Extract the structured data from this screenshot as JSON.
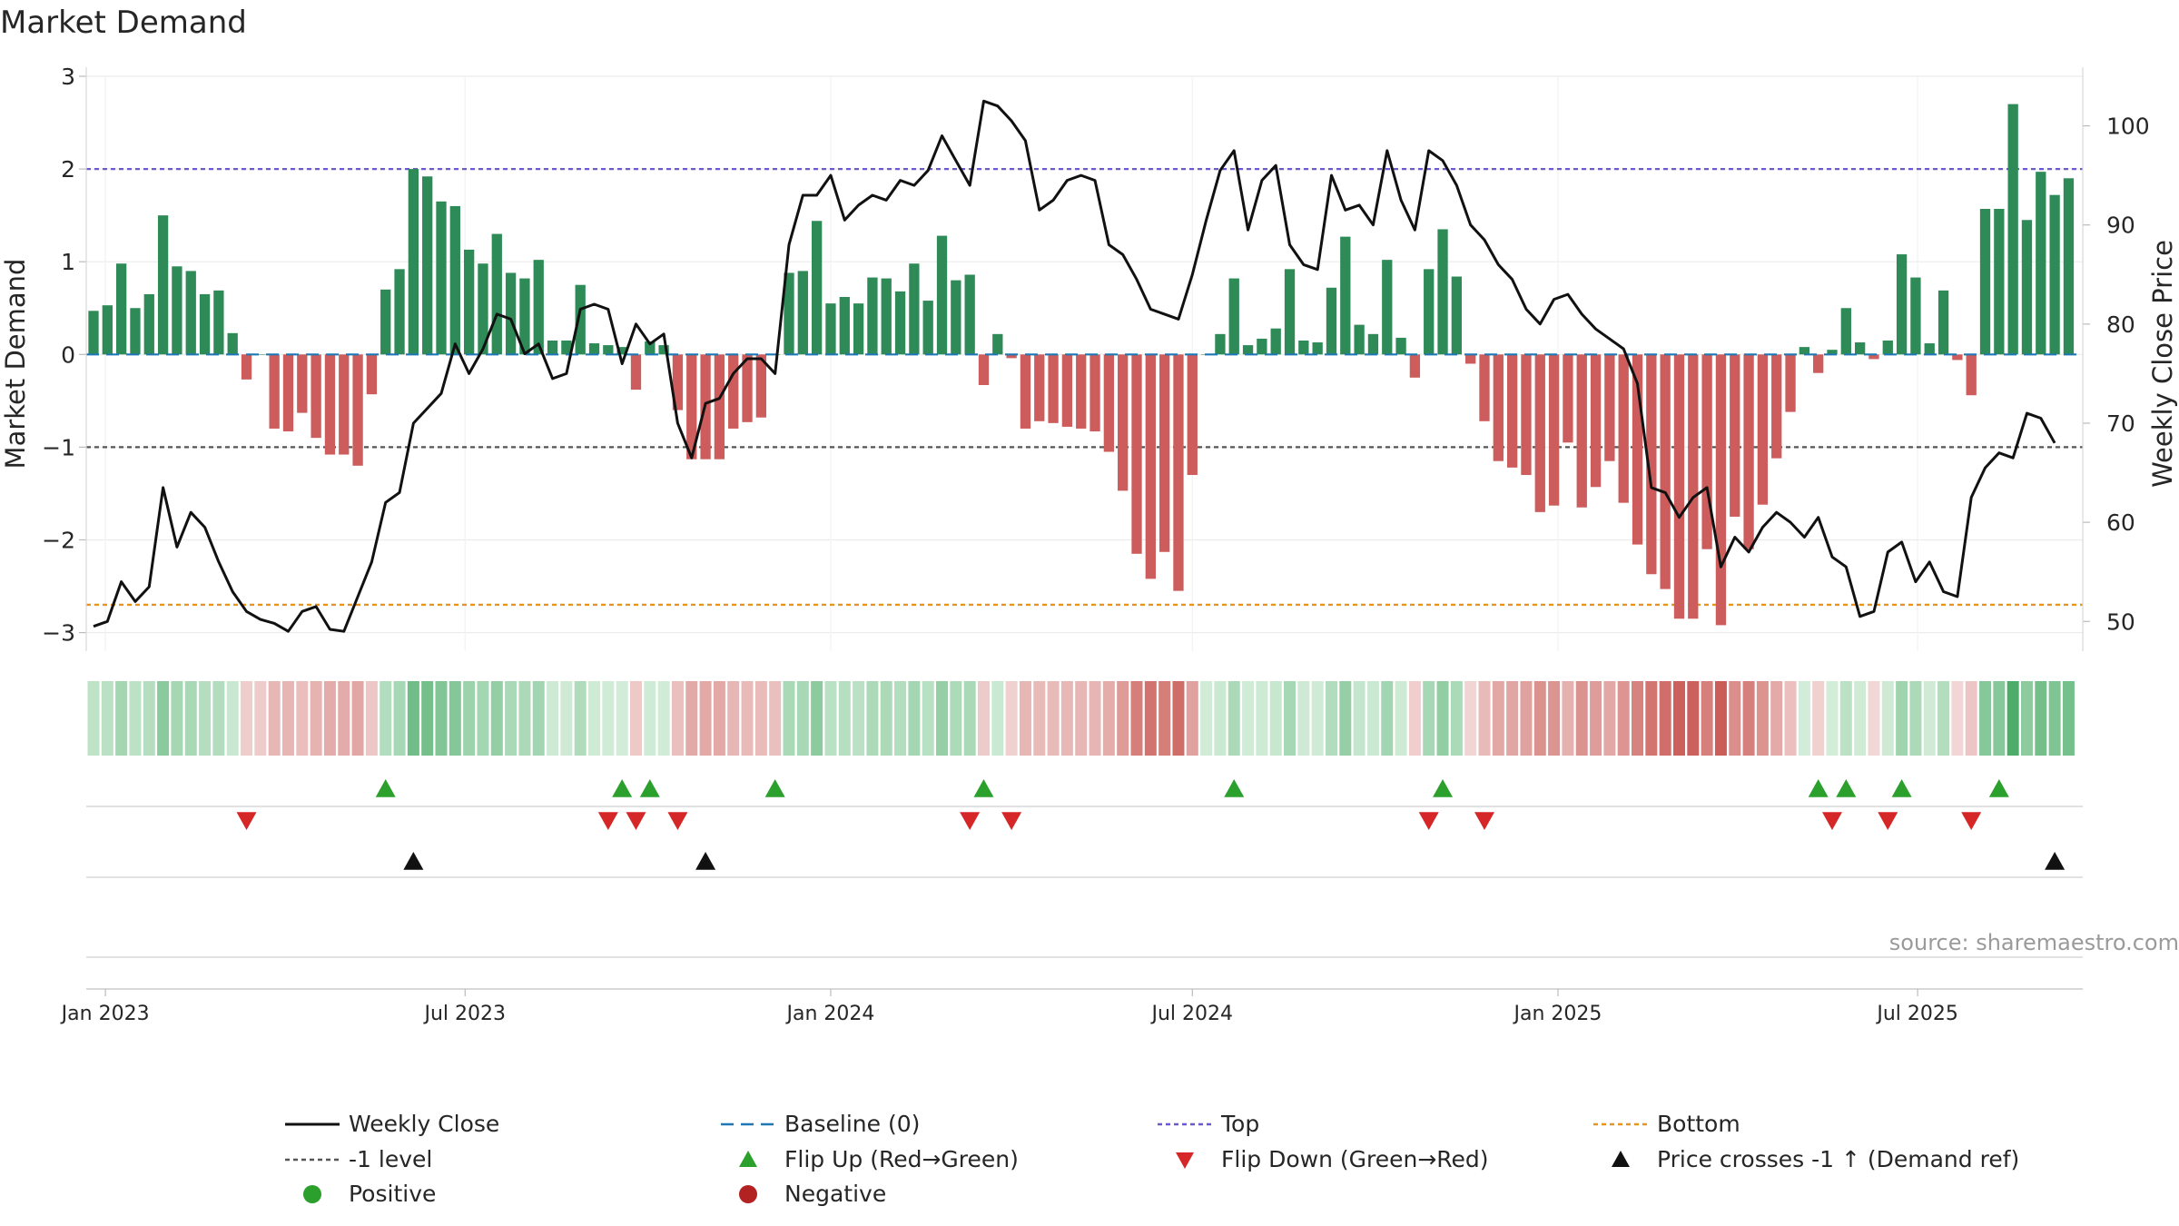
{
  "chart_data": {
    "type": "bar",
    "title": "Market Demand",
    "ylabel": "Market Demand",
    "ylabel_right": "Weekly Close Price",
    "ylim": [
      -3.2,
      3
    ],
    "ylim_right": [
      47,
      105
    ],
    "yticks": [
      3,
      2,
      1,
      0,
      -1,
      -2,
      -3
    ],
    "yticks_labels": [
      "3",
      "2",
      "1",
      "0",
      "−1",
      "−2",
      "−3"
    ],
    "yticks_right": [
      100,
      90,
      80,
      70,
      60,
      50
    ],
    "yticks_right_labels": [
      "100",
      "90",
      "80",
      "70",
      "60",
      "50"
    ],
    "x_start": "2022-12-26",
    "x_step_days": 7,
    "xticks": [
      {
        "date": "2023-01-01",
        "label": "Jan 2023"
      },
      {
        "date": "2023-07-01",
        "label": "Jul 2023"
      },
      {
        "date": "2024-01-01",
        "label": "Jan 2024"
      },
      {
        "date": "2024-07-01",
        "label": "Jul 2024"
      },
      {
        "date": "2025-01-01",
        "label": "Jan 2025"
      },
      {
        "date": "2025-07-01",
        "label": "Jul 2025"
      }
    ],
    "reference_lines": {
      "top": 2,
      "bottom": -2.7,
      "minus_one": -1,
      "baseline": 0
    },
    "colors": {
      "positive": "#2e8b57",
      "negative": "#cd5c5c",
      "line": "#111111",
      "top": "#6a5acd",
      "bottom": "#e69520",
      "minus_one": "#555555",
      "baseline": "#1f77b4",
      "flip_up": "#2ca02c",
      "flip_down": "#d62728",
      "cross": "#111111",
      "legend_positive": "#2ca02c",
      "legend_negative": "#b22222"
    },
    "demand": [
      0.47,
      0.53,
      0.98,
      0.5,
      0.65,
      1.5,
      0.95,
      0.9,
      0.65,
      0.69,
      0.23,
      -0.27,
      0,
      -0.8,
      -0.83,
      -0.63,
      -0.9,
      -1.08,
      -1.08,
      -1.2,
      -0.43,
      0.7,
      0.92,
      2.0,
      1.92,
      1.65,
      1.6,
      1.13,
      0.98,
      1.3,
      0.88,
      0.82,
      1.02,
      0.15,
      0.15,
      0.75,
      0.12,
      0.1,
      0.08,
      -0.38,
      0.14,
      0.1,
      -0.6,
      -1.13,
      -1.13,
      -1.13,
      -0.8,
      -0.73,
      -0.68,
      0,
      0.88,
      0.9,
      1.44,
      0.55,
      0.62,
      0.55,
      0.83,
      0.82,
      0.68,
      0.98,
      0.58,
      1.28,
      0.8,
      0.86,
      -0.33,
      0.22,
      -0.04,
      -0.8,
      -0.72,
      -0.74,
      -0.78,
      -0.8,
      -0.83,
      -1.05,
      -1.47,
      -2.15,
      -2.42,
      -2.13,
      -2.55,
      -1.3,
      0,
      0.22,
      0.82,
      0.1,
      0.17,
      0.28,
      0.92,
      0.15,
      0.13,
      0.72,
      1.27,
      0.32,
      0.22,
      1.02,
      0.18,
      -0.25,
      0.92,
      1.35,
      0.84,
      -0.1,
      -0.72,
      -1.15,
      -1.22,
      -1.3,
      -1.7,
      -1.63,
      -0.95,
      -1.65,
      -1.43,
      -1.15,
      -1.6,
      -2.05,
      -2.37,
      -2.53,
      -2.85,
      -2.85,
      -2.1,
      -2.92,
      -1.75,
      -2.1,
      -1.62,
      -1.12,
      -0.62,
      0.08,
      -0.2,
      0.05,
      0.5,
      0.13,
      -0.05,
      0.15,
      1.08,
      0.83,
      0.12,
      0.69,
      -0.06,
      -0.44,
      1.57,
      1.57,
      2.7,
      1.45,
      1.97,
      1.72,
      1.9
    ],
    "price": [
      49.5,
      50.0,
      54.0,
      52.0,
      53.5,
      63.5,
      57.5,
      61.0,
      59.5,
      56.0,
      53.0,
      51.0,
      50.2,
      49.8,
      49.0,
      51.0,
      51.5,
      49.2,
      49.0,
      52.5,
      56.0,
      62.0,
      63.0,
      70.0,
      71.5,
      73.0,
      78.0,
      75.0,
      77.5,
      81.0,
      80.5,
      77.0,
      78.0,
      74.5,
      75.0,
      81.5,
      82.0,
      81.5,
      76.0,
      80.0,
      78.0,
      79.0,
      70.0,
      66.5,
      72.0,
      72.5,
      75.0,
      76.5,
      76.5,
      75.0,
      88.0,
      93.0,
      93.0,
      95.0,
      90.5,
      92.0,
      93.0,
      92.5,
      94.5,
      94.0,
      95.5,
      99.0,
      96.5,
      94.0,
      102.5,
      102.0,
      100.5,
      98.5,
      91.5,
      92.5,
      94.5,
      95.0,
      94.5,
      88.0,
      87.0,
      84.5,
      81.5,
      81.0,
      80.5,
      85.0,
      90.5,
      95.5,
      97.5,
      89.5,
      94.5,
      96.0,
      88.0,
      86.0,
      85.5,
      95.0,
      91.5,
      92.0,
      90.0,
      97.5,
      92.5,
      89.5,
      97.5,
      96.5,
      94.0,
      90.0,
      88.5,
      86.0,
      84.5,
      81.5,
      80.0,
      82.5,
      83.0,
      81.0,
      79.5,
      78.5,
      77.5,
      74.0,
      63.5,
      63.0,
      60.5,
      62.5,
      63.5,
      55.5,
      58.5,
      57.0,
      59.5,
      61.0,
      60.0,
      58.5,
      60.5,
      56.5,
      55.5,
      50.5,
      51.0,
      57.0,
      58.0,
      54.0,
      56.0,
      53.0,
      52.5,
      62.5,
      65.5,
      67.0,
      66.5,
      71.0,
      70.5,
      68.0
    ],
    "band_values": [
      0.47,
      0.53,
      0.98,
      0.5,
      0.65,
      1.5,
      0.95,
      0.9,
      0.65,
      0.69,
      0.23,
      -0.27,
      -0.3,
      -0.8,
      -0.83,
      -0.63,
      -0.9,
      -1.08,
      -1.08,
      -1.2,
      -0.43,
      0.7,
      0.92,
      2.0,
      1.92,
      1.65,
      1.6,
      1.13,
      0.98,
      1.3,
      0.88,
      0.82,
      1.02,
      0.15,
      0.15,
      0.75,
      0.12,
      0.1,
      0.08,
      -0.38,
      0.14,
      0.1,
      -0.6,
      -1.13,
      -1.13,
      -1.13,
      -0.8,
      -0.73,
      -0.68,
      -0.6,
      0.88,
      0.9,
      1.44,
      0.55,
      0.62,
      0.55,
      0.83,
      0.82,
      0.68,
      0.98,
      0.58,
      1.28,
      0.8,
      0.86,
      -0.33,
      0.22,
      -0.2,
      -0.8,
      -0.72,
      -0.74,
      -0.78,
      -0.8,
      -0.83,
      -1.05,
      -1.47,
      -2.15,
      -2.42,
      -2.13,
      -2.55,
      -1.3,
      0.1,
      0.22,
      0.82,
      0.1,
      0.17,
      0.28,
      0.92,
      0.15,
      0.13,
      0.72,
      1.27,
      0.32,
      0.22,
      1.02,
      0.18,
      -0.25,
      0.92,
      1.35,
      0.84,
      -0.1,
      -0.72,
      -1.15,
      -1.22,
      -1.3,
      -1.7,
      -1.63,
      -0.95,
      -1.65,
      -1.43,
      -1.15,
      -1.6,
      -2.05,
      -2.37,
      -2.53,
      -2.85,
      -2.85,
      -2.1,
      -2.92,
      -1.75,
      -2.1,
      -1.62,
      -1.12,
      -0.62,
      0.08,
      -0.2,
      0.05,
      0.5,
      0.13,
      -0.05,
      0.15,
      1.08,
      0.83,
      0.12,
      0.69,
      -0.06,
      -0.44,
      1.57,
      1.57,
      2.7,
      1.45,
      1.97,
      1.72,
      1.9
    ],
    "flip_up_weeks": [
      21,
      38,
      40,
      49,
      64,
      82,
      97,
      124,
      126,
      130,
      137
    ],
    "flip_down_weeks": [
      11,
      37,
      39,
      42,
      63,
      66,
      96,
      100,
      125,
      129,
      135
    ],
    "cross_weeks": [
      23,
      44,
      141
    ],
    "source": "source: sharemaestro.com",
    "legend": [
      {
        "key": "weekly_close",
        "label": "Weekly Close",
        "marker": "line",
        "color": "#111111"
      },
      {
        "key": "baseline",
        "label": "Baseline (0)",
        "marker": "dash",
        "color": "#1f77b4"
      },
      {
        "key": "top",
        "label": "Top",
        "marker": "dot",
        "color": "#6a5acd"
      },
      {
        "key": "bottom",
        "label": "Bottom",
        "marker": "dot",
        "color": "#e69520"
      },
      {
        "key": "minus_one",
        "label": "-1 level",
        "marker": "dot",
        "color": "#555555"
      },
      {
        "key": "flip_up",
        "label": "Flip Up (Red→Green)",
        "marker": "tri-up",
        "color": "#2ca02c"
      },
      {
        "key": "flip_down",
        "label": "Flip Down (Green→Red)",
        "marker": "tri-down",
        "color": "#d62728"
      },
      {
        "key": "cross",
        "label": "Price crosses -1 ↑ (Demand ref)",
        "marker": "tri-up",
        "color": "#111111"
      },
      {
        "key": "positive",
        "label": "Positive",
        "marker": "circle",
        "color": "#2ca02c"
      },
      {
        "key": "negative",
        "label": "Negative",
        "marker": "circle",
        "color": "#b22222"
      }
    ]
  }
}
